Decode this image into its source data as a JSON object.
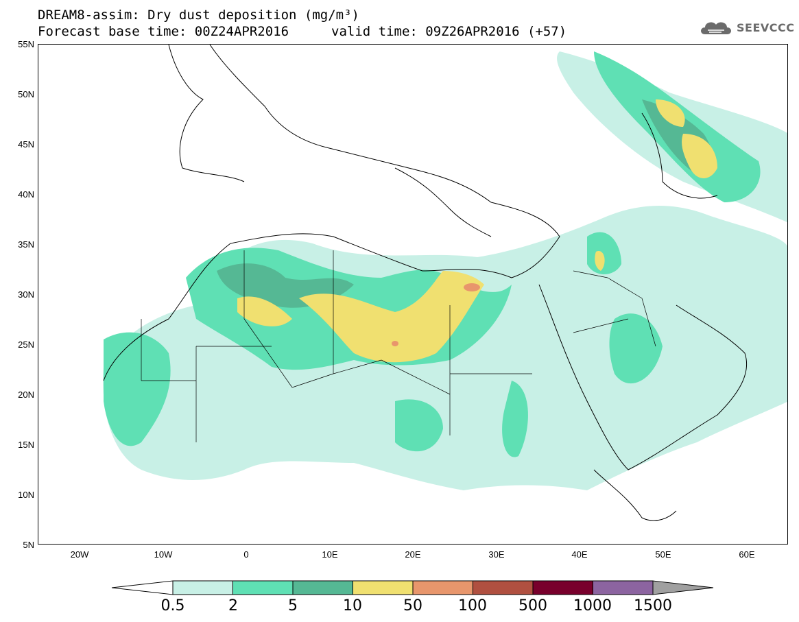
{
  "title": {
    "line1": "DREAM8-assim: Dry dust deposition (mg/m³)",
    "line2": "Forecast base time: 00Z24APR2016",
    "valid": "valid time: 09Z26APR2016 (+57)"
  },
  "logo": {
    "text": "SEEVCCC",
    "icon": "cloud-icon"
  },
  "axes": {
    "lat_labels": [
      "55N",
      "50N",
      "45N",
      "40N",
      "35N",
      "30N",
      "25N",
      "20N",
      "15N",
      "10N",
      "5N"
    ],
    "lon_labels": [
      "20W",
      "10W",
      "0",
      "10E",
      "20E",
      "30E",
      "40E",
      "50E",
      "60E"
    ]
  },
  "legend": {
    "levels": [
      "0.5",
      "2",
      "5",
      "10",
      "50",
      "100",
      "500",
      "1000",
      "1500"
    ],
    "colors": [
      "#c8f0e6",
      "#5fe0b4",
      "#55b894",
      "#f0e070",
      "#e8966c",
      "#b05040",
      "#78002c",
      "#8c64a0"
    ],
    "under_color": "#ffffff",
    "over_color": "#a0a0a0"
  }
}
